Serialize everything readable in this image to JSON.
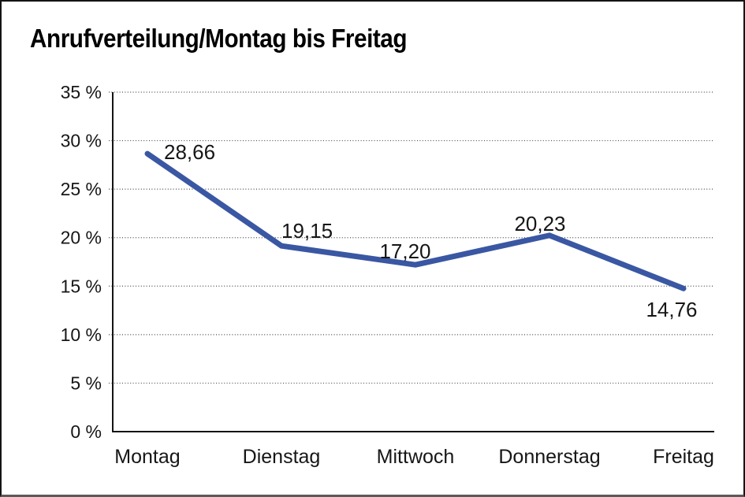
{
  "window": {
    "background_color": "#ffffff",
    "frame_border_color": "#141414"
  },
  "chart_data": {
    "type": "line",
    "title": "Anrufverteilung/Montag bis Freitag",
    "categories": [
      "Montag",
      "Dienstag",
      "Mittwoch",
      "Donnerstag",
      "Freitag"
    ],
    "values": [
      28.66,
      19.15,
      17.2,
      20.23,
      14.76
    ],
    "point_labels": [
      "28,66",
      "19,15",
      "17,20",
      "20,23",
      "14,76"
    ],
    "series_name": "Anrufverteilung",
    "xlabel": "",
    "ylabel": "",
    "ylim": [
      0,
      35
    ],
    "y_ticks": [
      0,
      5,
      10,
      15,
      20,
      25,
      30,
      35
    ],
    "y_tick_labels": [
      "0 %",
      "5 %",
      "10 %",
      "15 %",
      "20 %",
      "25 %",
      "30 %",
      "35 %"
    ],
    "grid": "horizontal-dotted",
    "legend_position": "none",
    "line_color": "#3a57a3",
    "gridline_color": "#4d4d4d",
    "axis_color": "#141414",
    "text_color": "#161616"
  }
}
